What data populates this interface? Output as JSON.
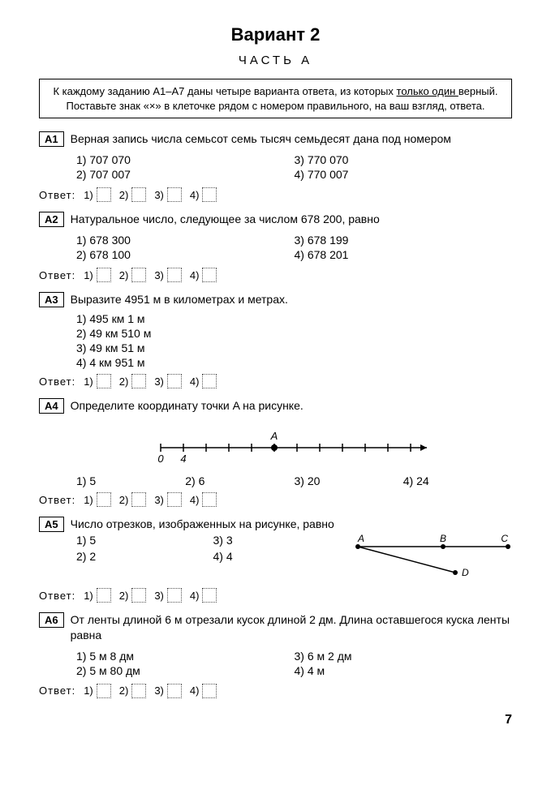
{
  "title": "Вариант 2",
  "part_label": "ЧАСТЬ А",
  "instruction_line1": "К каждому заданию А1–А7 даны четыре варианта ответа, из которых ",
  "instruction_underline": "только один ",
  "instruction_after": "верный.",
  "instruction_line2": "Поставьте знак «×» в клеточке рядом с номером правильного, на ваш взгляд, ответа.",
  "answer_label": "Ответ:",
  "ans_boxes": [
    "1)",
    "2)",
    "3)",
    "4)"
  ],
  "page_number": "7",
  "A1": {
    "label": "А1",
    "text": "Верная запись числа семьсот семь тысяч семьдесят дана под номером",
    "o1": "1) 707 070",
    "o2": "2) 707 007",
    "o3": "3) 770 070",
    "o4": "4) 770 007"
  },
  "A2": {
    "label": "А2",
    "text": "Натуральное число, следующее за числом 678 200, равно",
    "o1": "1) 678 300",
    "o2": "2) 678 100",
    "o3": "3) 678 199",
    "o4": "4) 678 201"
  },
  "A3": {
    "label": "А3",
    "text": "Выразите 4951 м в километрах и метрах.",
    "o1": "1) 495 км 1 м",
    "o2": "2) 49 км 510 м",
    "o3": "3) 49 км 51 м",
    "o4": "4) 4 км 951 м"
  },
  "A4": {
    "label": "А4",
    "text": "Определите координату точки A на рисунке.",
    "o1": "1) 5",
    "o2": "2) 6",
    "o3": "3) 20",
    "o4": "4) 24",
    "numberline": {
      "tick_count": 12,
      "label0": "0",
      "label1": "4",
      "point_label": "A",
      "point_index": 5
    }
  },
  "A5": {
    "label": "А5",
    "text": "Число отрезков, изображенных на рисунке, равно",
    "o1": "1) 5",
    "o2": "2) 2",
    "o3": "3) 3",
    "o4": "4) 4",
    "fig": {
      "A": "A",
      "B": "B",
      "C": "C",
      "D": "D"
    }
  },
  "A6": {
    "label": "А6",
    "text": "От ленты длиной 6 м отрезали кусок длиной 2 дм. Длина оставшегося куска ленты равна",
    "o1": "1) 5 м 8 дм",
    "o2": "2) 5 м 80 дм",
    "o3": "3) 6 м 2 дм",
    "o4": "4) 4 м"
  }
}
